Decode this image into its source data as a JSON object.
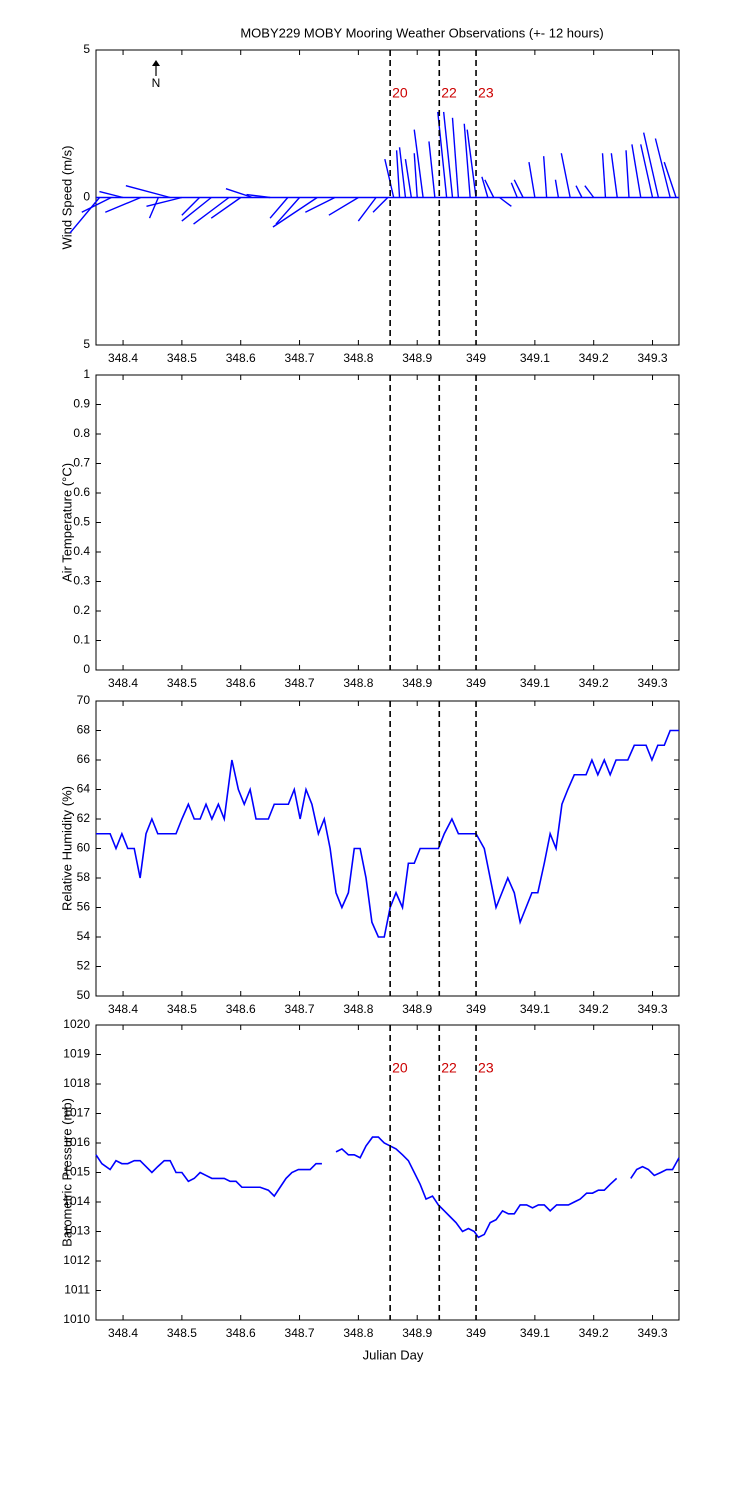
{
  "chart_data": [
    {
      "type": "quiver",
      "title": "MOBY229 MOBY Mooring Weather Observations (+- 12 hours)",
      "ylabel": "Wind Speed (m/s)",
      "north_label": "N",
      "xlim": [
        348.354,
        349.345
      ],
      "xticks": [
        348.4,
        348.5,
        348.6,
        348.7,
        348.8,
        348.9,
        349,
        349.1,
        349.2,
        349.3
      ],
      "ylim": [
        -5,
        5
      ],
      "yticks": [
        {
          "value": -5,
          "label": "5"
        },
        0,
        5
      ],
      "color": "#0000ff",
      "vlines": [
        348.854,
        348.9375,
        349
      ],
      "annotations": [
        "20",
        "22",
        "23"
      ],
      "annotation_color": "#cc0000",
      "x": [
        348.36,
        348.38,
        348.4,
        348.43,
        348.46,
        348.48,
        348.5,
        348.53,
        348.55,
        348.58,
        348.6,
        348.62,
        348.65,
        348.68,
        348.7,
        348.73,
        348.76,
        348.8,
        348.83,
        348.85,
        348.86,
        348.87,
        348.88,
        348.89,
        348.9,
        348.91,
        348.93,
        348.95,
        348.96,
        348.97,
        348.99,
        349.0,
        349.02,
        349.03,
        349.04,
        349.07,
        349.08,
        349.1,
        349.12,
        349.14,
        349.16,
        349.18,
        349.2,
        349.22,
        349.24,
        349.26,
        349.28,
        349.3,
        349.31,
        349.33,
        349.34
      ],
      "u": [
        -1.0,
        -1.0,
        -0.8,
        -1.2,
        -0.3,
        -1.5,
        -1.2,
        -0.6,
        -1.0,
        -1.2,
        -1.0,
        -0.9,
        -0.8,
        -0.6,
        -0.8,
        -1.5,
        -1.0,
        -1.0,
        -0.6,
        -0.5,
        -0.3,
        -0.1,
        -0.2,
        -0.2,
        -0.1,
        -0.3,
        -0.2,
        -0.3,
        -0.3,
        -0.2,
        -0.2,
        -0.3,
        -0.2,
        -0.3,
        0.4,
        -0.2,
        -0.3,
        -0.2,
        -0.1,
        -0.1,
        -0.3,
        -0.2,
        -0.3,
        -0.1,
        -0.2,
        -0.1,
        -0.3,
        -0.4,
        -0.5,
        -0.5,
        -0.4
      ],
      "v": [
        -1.2,
        -0.5,
        0.2,
        -0.5,
        -0.7,
        0.4,
        -0.3,
        -0.6,
        -0.8,
        -0.9,
        -0.7,
        0.3,
        0.1,
        -0.7,
        -0.9,
        -1.0,
        -0.5,
        -0.6,
        -0.8,
        -0.5,
        1.3,
        1.6,
        1.7,
        1.3,
        1.5,
        2.3,
        1.9,
        2.9,
        2.9,
        2.7,
        2.5,
        2.3,
        0.7,
        0.6,
        -0.3,
        0.5,
        0.6,
        1.2,
        1.4,
        0.6,
        1.5,
        0.4,
        0.4,
        1.5,
        1.5,
        1.6,
        1.8,
        1.8,
        2.2,
        2.0,
        1.2
      ]
    },
    {
      "type": "line",
      "ylabel": "Air Temperature (°C)",
      "xlim": [
        348.354,
        349.345
      ],
      "xticks": [
        348.4,
        348.5,
        348.6,
        348.7,
        348.8,
        348.9,
        349,
        349.1,
        349.2,
        349.3
      ],
      "ylim": [
        0,
        1
      ],
      "yticks": [
        0,
        0.1,
        0.2,
        0.3,
        0.4,
        0.5,
        0.6,
        0.7,
        0.8,
        0.9,
        1
      ],
      "color": "#0000ff",
      "vlines": [
        348.854,
        348.9375,
        349
      ],
      "x": [],
      "values": []
    },
    {
      "type": "line",
      "ylabel": "Relative Humidity (%)",
      "xlim": [
        348.354,
        349.345
      ],
      "xticks": [
        348.4,
        348.5,
        348.6,
        348.7,
        348.8,
        348.9,
        349,
        349.1,
        349.2,
        349.3
      ],
      "ylim": [
        50,
        70
      ],
      "yticks": [
        50,
        52,
        54,
        56,
        58,
        60,
        62,
        64,
        66,
        68,
        70
      ],
      "color": "#0000ff",
      "vlines": [
        348.854,
        348.9375,
        349
      ],
      "x": [
        348.354,
        348.378,
        348.388,
        348.398,
        348.408,
        348.419,
        348.429,
        348.439,
        348.449,
        348.459,
        348.47,
        348.49,
        348.5,
        348.511,
        348.521,
        348.531,
        348.541,
        348.551,
        348.562,
        348.572,
        348.585,
        348.596,
        348.606,
        348.616,
        348.626,
        348.636,
        348.647,
        348.657,
        348.667,
        348.681,
        348.691,
        348.701,
        348.711,
        348.721,
        348.732,
        348.742,
        348.752,
        348.762,
        348.772,
        348.783,
        348.793,
        348.803,
        348.813,
        348.823,
        348.834,
        348.844,
        348.854,
        348.864,
        348.875,
        348.885,
        348.895,
        348.905,
        348.915,
        348.925,
        348.936,
        348.946,
        348.959,
        348.97,
        348.98,
        348.99,
        349.0,
        349.014,
        349.024,
        349.034,
        349.044,
        349.054,
        349.065,
        349.075,
        349.085,
        349.095,
        349.105,
        349.116,
        349.126,
        349.136,
        349.146,
        349.156,
        349.167,
        349.177,
        349.187,
        349.197,
        349.207,
        349.218,
        349.228,
        349.238,
        349.248,
        349.258,
        349.269,
        349.279,
        349.289,
        349.299,
        349.309,
        349.32,
        349.33,
        349.345
      ],
      "values": [
        61,
        61,
        60,
        61,
        60,
        60,
        58,
        61,
        62,
        61,
        61,
        61,
        62,
        63,
        62,
        62,
        63,
        62,
        63,
        62,
        66,
        64,
        63,
        64,
        62,
        62,
        62,
        63,
        63,
        63,
        64,
        62,
        64,
        63,
        61,
        62,
        60,
        57,
        56,
        57,
        60,
        60,
        58,
        55,
        54,
        54,
        56,
        57,
        56,
        59,
        59,
        60,
        60,
        60,
        60,
        61,
        62,
        61,
        61,
        61,
        61,
        60,
        58,
        56,
        57,
        58,
        57,
        55,
        56,
        57,
        57,
        59,
        61,
        60,
        63,
        64,
        65,
        65,
        65,
        66,
        65,
        66,
        65,
        66,
        66,
        66,
        67,
        67,
        67,
        66,
        67,
        67,
        68,
        68
      ]
    },
    {
      "type": "line",
      "ylabel": "Barometric Pressure (mb)",
      "xlabel": "Julian Day",
      "xlim": [
        348.354,
        349.345
      ],
      "xticks": [
        348.4,
        348.5,
        348.6,
        348.7,
        348.8,
        348.9,
        349,
        349.1,
        349.2,
        349.3
      ],
      "ylim": [
        1010,
        1020
      ],
      "yticks": [
        1010,
        1011,
        1012,
        1013,
        1014,
        1015,
        1016,
        1017,
        1018,
        1019,
        1020
      ],
      "color": "#0000ff",
      "vlines": [
        348.854,
        348.9375,
        349
      ],
      "annotations": [
        "20",
        "22",
        "23"
      ],
      "annotation_color": "#cc0000",
      "x": [
        348.354,
        348.364,
        348.378,
        348.388,
        348.398,
        348.408,
        348.419,
        348.429,
        348.439,
        348.449,
        348.459,
        348.47,
        348.48,
        348.49,
        348.5,
        348.511,
        348.521,
        348.531,
        348.541,
        348.551,
        348.562,
        348.572,
        348.582,
        348.592,
        348.602,
        348.613,
        348.623,
        348.633,
        348.647,
        348.657,
        348.667,
        348.677,
        348.687,
        348.698,
        348.708,
        348.718,
        348.728,
        348.738,
        348.75,
        348.762,
        348.772,
        348.783,
        348.793,
        348.803,
        348.813,
        348.824,
        348.834,
        348.844,
        348.854,
        348.864,
        348.875,
        348.885,
        348.895,
        348.905,
        348.915,
        348.926,
        348.936,
        348.946,
        348.956,
        348.966,
        348.977,
        348.987,
        348.997,
        349.004,
        349.014,
        349.024,
        349.034,
        349.045,
        349.055,
        349.065,
        349.075,
        349.086,
        349.096,
        349.106,
        349.116,
        349.126,
        349.137,
        349.147,
        349.157,
        349.167,
        349.177,
        349.188,
        349.198,
        349.208,
        349.218,
        349.228,
        349.239,
        349.25,
        349.263,
        349.273,
        349.283,
        349.293,
        349.303,
        349.314,
        349.324,
        349.334,
        349.345
      ],
      "values": [
        1015.6,
        1015.3,
        1015.1,
        1015.4,
        1015.3,
        1015.3,
        1015.4,
        1015.4,
        1015.2,
        1015.0,
        1015.2,
        1015.4,
        1015.4,
        1015.0,
        1015.0,
        1014.7,
        1014.8,
        1015.0,
        1014.9,
        1014.8,
        1014.8,
        1014.8,
        1014.7,
        1014.7,
        1014.5,
        1014.5,
        1014.5,
        1014.5,
        1014.4,
        1014.2,
        1014.5,
        1014.8,
        1015.0,
        1015.1,
        1015.1,
        1015.1,
        1015.3,
        1015.3,
        null,
        1015.7,
        1015.8,
        1015.6,
        1015.6,
        1015.5,
        1015.9,
        1016.2,
        1016.2,
        1016.0,
        1015.9,
        1015.8,
        1015.6,
        1015.4,
        1015.0,
        1014.6,
        1014.1,
        1014.2,
        1013.9,
        1013.7,
        1013.5,
        1013.3,
        1013.0,
        1013.1,
        1013.0,
        1012.8,
        1012.9,
        1013.3,
        1013.4,
        1013.7,
        1013.6,
        1013.6,
        1013.9,
        1013.9,
        1013.8,
        1013.9,
        1013.9,
        1013.7,
        1013.9,
        1013.9,
        1013.9,
        1014.0,
        1014.1,
        1014.3,
        1014.3,
        1014.4,
        1014.4,
        1014.6,
        1014.8,
        null,
        1014.8,
        1015.1,
        1015.2,
        1015.1,
        1014.9,
        1015.0,
        1015.1,
        1015.1,
        1015.5
      ]
    }
  ]
}
